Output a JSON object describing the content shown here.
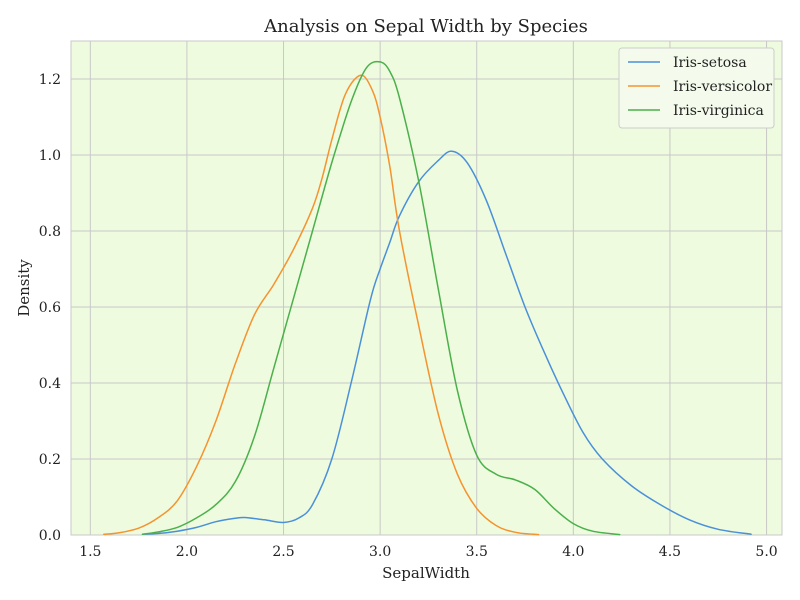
{
  "chart_data": {
    "type": "line",
    "title": "Analysis on Sepal Width by Species",
    "xlabel": "SepalWidth",
    "ylabel": "Density",
    "xlim": [
      1.4,
      5.08
    ],
    "ylim": [
      0,
      1.3
    ],
    "xticks": [
      "1.5",
      "2.0",
      "2.5",
      "3.0",
      "3.5",
      "4.0",
      "4.5",
      "5.0"
    ],
    "yticks": [
      "0.0",
      "0.2",
      "0.4",
      "0.6",
      "0.8",
      "1.0",
      "1.2"
    ],
    "grid": true,
    "background_color": "#eefbdf",
    "legend_position": "top-right",
    "series": [
      {
        "name": "Iris-setosa",
        "color": "#4a90d9",
        "x": [
          1.77,
          1.85,
          1.95,
          2.05,
          2.15,
          2.25,
          2.3,
          2.4,
          2.5,
          2.58,
          2.65,
          2.75,
          2.85,
          2.95,
          3.0,
          3.05,
          3.1,
          3.2,
          3.3,
          3.37,
          3.45,
          3.55,
          3.65,
          3.75,
          3.85,
          3.95,
          4.05,
          4.15,
          4.3,
          4.45,
          4.6,
          4.75,
          4.92
        ],
        "y": [
          0.002,
          0.004,
          0.01,
          0.02,
          0.035,
          0.044,
          0.046,
          0.04,
          0.033,
          0.045,
          0.08,
          0.2,
          0.4,
          0.62,
          0.7,
          0.77,
          0.84,
          0.93,
          0.985,
          1.01,
          0.98,
          0.88,
          0.74,
          0.6,
          0.48,
          0.37,
          0.27,
          0.2,
          0.13,
          0.08,
          0.04,
          0.015,
          0.002
        ]
      },
      {
        "name": "Iris-versicolor",
        "color": "#f5932e",
        "x": [
          1.57,
          1.65,
          1.75,
          1.85,
          1.95,
          2.05,
          2.15,
          2.25,
          2.35,
          2.45,
          2.55,
          2.65,
          2.7,
          2.75,
          2.82,
          2.9,
          2.96,
          3.0,
          3.05,
          3.1,
          3.2,
          3.3,
          3.4,
          3.5,
          3.6,
          3.7,
          3.82
        ],
        "y": [
          0.002,
          0.006,
          0.018,
          0.045,
          0.09,
          0.18,
          0.3,
          0.45,
          0.58,
          0.66,
          0.75,
          0.86,
          0.94,
          1.04,
          1.16,
          1.21,
          1.17,
          1.1,
          0.97,
          0.8,
          0.55,
          0.32,
          0.16,
          0.07,
          0.025,
          0.007,
          0.001
        ]
      },
      {
        "name": "Iris-virginica",
        "color": "#4bb04b",
        "x": [
          1.77,
          1.85,
          1.95,
          2.05,
          2.15,
          2.25,
          2.35,
          2.45,
          2.55,
          2.65,
          2.75,
          2.85,
          2.93,
          3.0,
          3.05,
          3.1,
          3.2,
          3.3,
          3.4,
          3.5,
          3.6,
          3.7,
          3.8,
          3.9,
          4.0,
          4.1,
          4.24
        ],
        "y": [
          0.002,
          0.008,
          0.02,
          0.045,
          0.08,
          0.14,
          0.26,
          0.44,
          0.62,
          0.8,
          0.98,
          1.14,
          1.23,
          1.245,
          1.22,
          1.15,
          0.93,
          0.65,
          0.38,
          0.21,
          0.16,
          0.145,
          0.12,
          0.07,
          0.03,
          0.01,
          0.001
        ]
      }
    ]
  }
}
